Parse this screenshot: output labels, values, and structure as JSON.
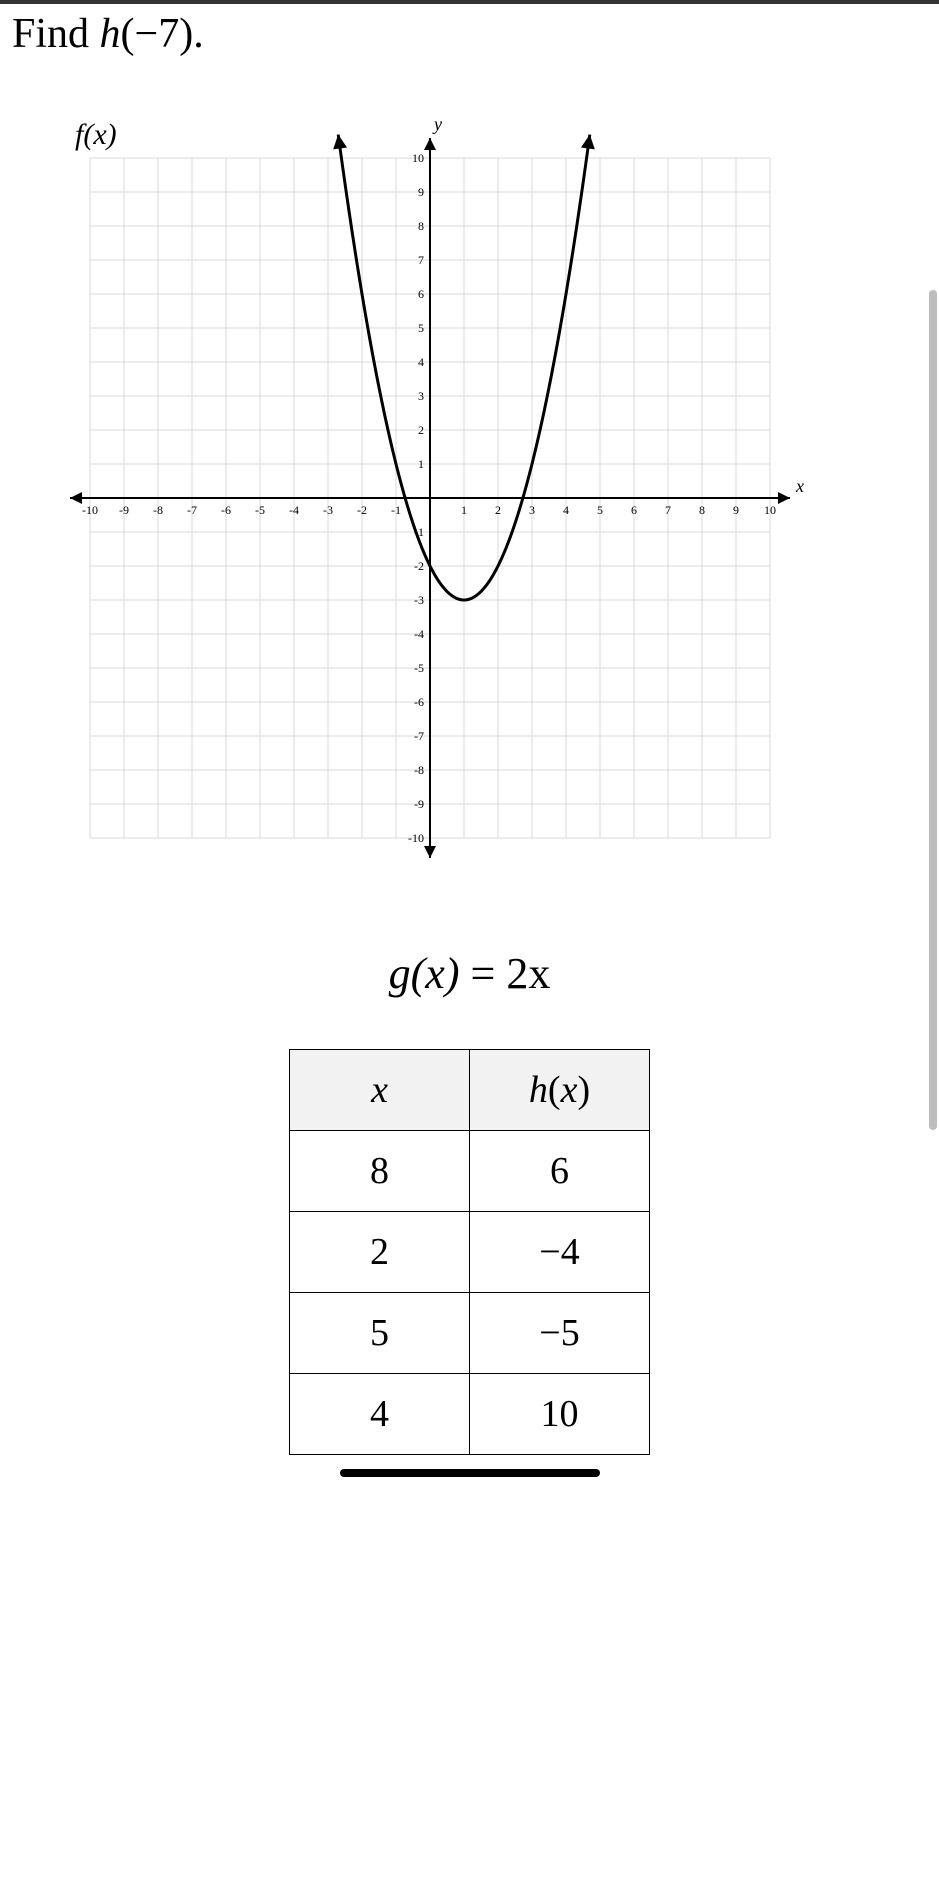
{
  "question": {
    "prefix": "Find ",
    "func": "h",
    "arg": "(−7)",
    "suffix": "."
  },
  "chart": {
    "type": "scatter-line",
    "fx_label": "f(x)",
    "y_axis_label": "y",
    "x_axis_label": "x",
    "xlim": [
      -10,
      10
    ],
    "ylim": [
      -10,
      10
    ],
    "xtick_step": 1,
    "ytick_step": 1,
    "xticks": [
      -10,
      -9,
      -8,
      -7,
      -6,
      -5,
      -4,
      -3,
      -2,
      -1,
      1,
      2,
      3,
      4,
      5,
      6,
      7,
      8,
      9,
      10
    ],
    "yticks": [
      10,
      9,
      8,
      7,
      6,
      5,
      4,
      3,
      2,
      1,
      -1,
      -2,
      -3,
      -4,
      -5,
      -6,
      -7,
      -8,
      -9,
      -10
    ],
    "grid_color": "#d9d9d9",
    "axis_color": "#000000",
    "background_color": "#ffffff",
    "curve": {
      "color": "#000000",
      "width": 3,
      "vertex": [
        1,
        -3
      ],
      "a": 1.0,
      "points_x": [
        -2.7,
        -2.5,
        -2,
        -1.5,
        -1,
        -0.5,
        0,
        0.5,
        1,
        1.5,
        2,
        2.5,
        3,
        3.5,
        4,
        4.5,
        4.7
      ],
      "note": "parabola y = (x-1)^2 - 3, arrows at both open ends"
    },
    "label_fontsize": 12,
    "axis_label_fontsize_italic": true
  },
  "formula": {
    "lhs": "g",
    "arg": "(x)",
    "eq": " = ",
    "rhs": "2x"
  },
  "table": {
    "headers": {
      "col1": "x",
      "col2": "h(x)"
    },
    "rows": [
      {
        "x": "8",
        "hx": "6"
      },
      {
        "x": "2",
        "hx": "−4"
      },
      {
        "x": "5",
        "hx": "−5"
      },
      {
        "x": "4",
        "hx": "10"
      }
    ]
  },
  "colors": {
    "text": "#000000",
    "grid": "#d9d9d9",
    "table_header_bg": "#f2f2f2",
    "scrollbar": "#bdbdbd"
  }
}
